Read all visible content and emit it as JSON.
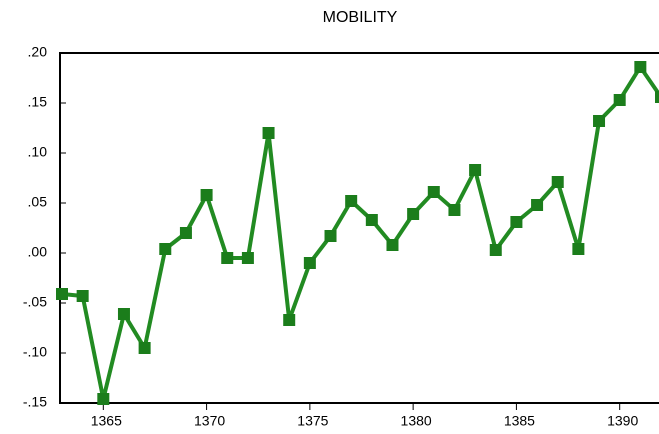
{
  "chart_data": {
    "type": "line",
    "title": "MOBILITY",
    "x": [
      1363,
      1364,
      1365,
      1366,
      1367,
      1368,
      1369,
      1370,
      1371,
      1372,
      1373,
      1374,
      1375,
      1376,
      1377,
      1378,
      1379,
      1380,
      1381,
      1382,
      1383,
      1384,
      1385,
      1386,
      1387,
      1388,
      1389,
      1390,
      1391,
      1392
    ],
    "series": [
      {
        "name": "MOBILITY",
        "color": "#228b22",
        "values": [
          -0.041,
          -0.043,
          -0.146,
          -0.061,
          -0.095,
          0.004,
          0.02,
          0.058,
          -0.005,
          -0.005,
          0.12,
          -0.067,
          -0.01,
          0.017,
          0.052,
          0.033,
          0.008,
          0.039,
          0.061,
          0.043,
          0.083,
          0.003,
          0.031,
          0.048,
          0.071,
          0.004,
          0.132,
          0.153,
          0.186,
          0.156
        ]
      }
    ],
    "xlim": [
      1363,
      1392
    ],
    "xticks": [
      1365,
      1370,
      1375,
      1380,
      1385,
      1390
    ],
    "ylim": [
      -0.15,
      0.2
    ],
    "yticks": [
      {
        "value": -0.15,
        "label": "-.15"
      },
      {
        "value": -0.1,
        "label": "-.10"
      },
      {
        "value": -0.05,
        "label": "-.05"
      },
      {
        "value": 0.0,
        "label": ".00"
      },
      {
        "value": 0.05,
        "label": ".05"
      },
      {
        "value": 0.1,
        "label": ".10"
      },
      {
        "value": 0.15,
        "label": ".15"
      },
      {
        "value": 0.2,
        "label": ".20"
      }
    ],
    "grid": false
  }
}
